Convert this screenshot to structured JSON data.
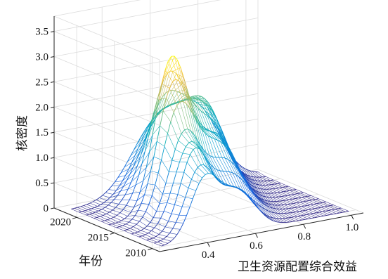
{
  "chart_data": {
    "type": "surface-3d-waterfall",
    "title": "",
    "xlabel": "卫生资源配置综合效益",
    "ylabel": "年份",
    "zlabel": "核密度",
    "x_ticks": [
      "0.4",
      "0.6",
      "0.8",
      "1.0"
    ],
    "y_ticks": [
      "2010",
      "2015",
      "2020"
    ],
    "z_ticks": [
      "0",
      "0.5",
      "1.0",
      "1.5",
      "2.0",
      "2.5",
      "3.0",
      "3.5"
    ],
    "xlim": [
      0.2,
      1.05
    ],
    "ylim": [
      2009,
      2023
    ],
    "zlim": [
      0,
      3.8
    ],
    "grid": true,
    "colormap": "parula",
    "colors": {
      "low": "#352a87",
      "mid": "#2cb5c0",
      "high": "#f9fb0e"
    },
    "series": [
      {
        "year": 2010,
        "peaks": [
          [
            0.42,
            1.15,
            0.06
          ],
          [
            0.56,
            0.8,
            0.07
          ]
        ]
      },
      {
        "year": 2011,
        "peaks": [
          [
            0.43,
            1.3,
            0.06
          ],
          [
            0.58,
            0.75,
            0.07
          ]
        ]
      },
      {
        "year": 2012,
        "peaks": [
          [
            0.44,
            1.55,
            0.06
          ],
          [
            0.6,
            0.7,
            0.08
          ]
        ]
      },
      {
        "year": 2013,
        "peaks": [
          [
            0.45,
            1.6,
            0.065
          ],
          [
            0.62,
            0.9,
            0.08
          ]
        ]
      },
      {
        "year": 2014,
        "peaks": [
          [
            0.46,
            1.75,
            0.065
          ],
          [
            0.63,
            1.1,
            0.08
          ]
        ]
      },
      {
        "year": 2015,
        "peaks": [
          [
            0.47,
            2.2,
            0.07
          ],
          [
            0.64,
            1.3,
            0.08
          ]
        ]
      },
      {
        "year": 2016,
        "peaks": [
          [
            0.48,
            2.6,
            0.07
          ],
          [
            0.66,
            1.4,
            0.08
          ]
        ]
      },
      {
        "year": 2017,
        "peaks": [
          [
            0.5,
            3.0,
            0.07
          ],
          [
            0.68,
            1.3,
            0.08
          ]
        ]
      },
      {
        "year": 2018,
        "peaks": [
          [
            0.52,
            2.6,
            0.08
          ],
          [
            0.7,
            1.4,
            0.08
          ]
        ]
      },
      {
        "year": 2019,
        "peaks": [
          [
            0.54,
            2.1,
            0.09
          ],
          [
            0.72,
            1.5,
            0.08
          ]
        ]
      },
      {
        "year": 2020,
        "peaks": [
          [
            0.56,
            1.7,
            0.1
          ],
          [
            0.74,
            1.5,
            0.08
          ]
        ]
      },
      {
        "year": 2021,
        "peaks": [
          [
            0.58,
            1.6,
            0.1
          ],
          [
            0.76,
            1.4,
            0.08
          ]
        ]
      },
      {
        "year": 2022,
        "peaks": [
          [
            0.6,
            1.4,
            0.11
          ],
          [
            0.78,
            1.2,
            0.09
          ]
        ]
      }
    ]
  }
}
